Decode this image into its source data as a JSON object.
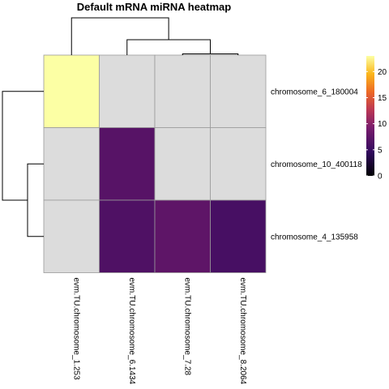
{
  "chart_data": {
    "type": "heatmap",
    "title": "Default mRNA miRNA heatmap",
    "columns": [
      "evm.TU.chromosome_1.253",
      "evm.TU.chromosome_6.1434",
      "evm.TU.chromosome_7.28",
      "evm.TU.chromosome_8.2064"
    ],
    "rows": [
      "chromosome_6_180004",
      "chromosome_10_400118",
      "chromosome_4_135958"
    ],
    "values": [
      [
        23,
        null,
        null,
        null
      ],
      [
        null,
        7,
        null,
        null
      ],
      [
        null,
        6.5,
        7.5,
        6
      ]
    ],
    "na_color": "#dcdcdc",
    "colorscale": "inferno",
    "colorbar": {
      "ticks": [
        0,
        5,
        10,
        15,
        20
      ],
      "range": [
        0,
        23
      ]
    },
    "row_dendrogram": "chromosome_6_180004 | (chromosome_10_400118, chromosome_4_135958)",
    "column_dendrogram": "evm.TU.chromosome_1.253 | (evm.TU.chromosome_6.1434, (evm.TU.chromosome_7.28, evm.TU.chromosome_8.2064))"
  }
}
